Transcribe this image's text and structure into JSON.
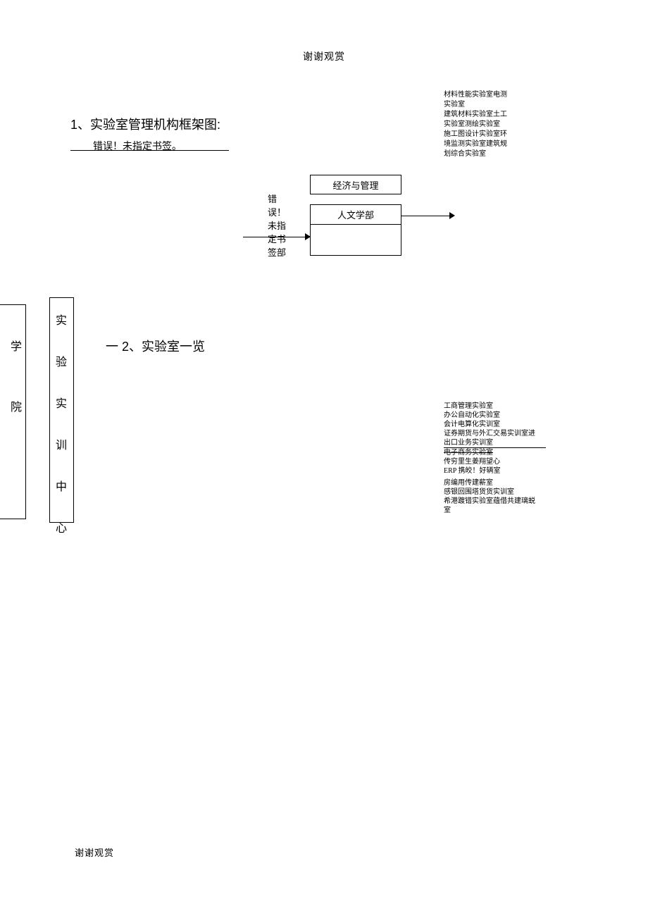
{
  "header": {
    "text": "谢谢观赏"
  },
  "section1": {
    "title": "1、实验室管理机构框架图:",
    "error": "错误！未指定书签。"
  },
  "rightList1": {
    "line1": "材料性能实验室电测",
    "line2": "实验室",
    "line3": "建筑材料实验室土工",
    "line4": "实验室测绘实验室",
    "line5": "施工图设计实验室环",
    "line6": "境监测实验室建筑规",
    "line7": "划综合实验室"
  },
  "diagram": {
    "box1": "经济与管理",
    "error": "错误！未指定书签部",
    "box2": "人文学部"
  },
  "sidebar1": {
    "char1": "学",
    "char2": "院"
  },
  "sidebar2": {
    "char1": "实",
    "char2": "验",
    "char3": "实",
    "char4": "训",
    "char5": "中",
    "char6": "心"
  },
  "section2": {
    "dash": "一",
    "title": " 2、实验室一览"
  },
  "rightList2": {
    "line1": "工商管理实验室",
    "line2": "办公自动化实验室",
    "line3": "会计电算化实训室",
    "line4": "证券期货与外汇交易实训室进",
    "line5": "出口业务实训室",
    "line6": "电子商务实验室",
    "line7": "传穷里生姜翔望心",
    "line8a": "ERP ",
    "line8b": "携皎！好辆室",
    "line9": "房编用传建薪室",
    "line10": "感银回围塔货货实训室",
    "line11": "希港踱错实验室蕴借共建璃蜕",
    "line12": "室"
  },
  "footer": {
    "text": "谢谢观赏"
  }
}
